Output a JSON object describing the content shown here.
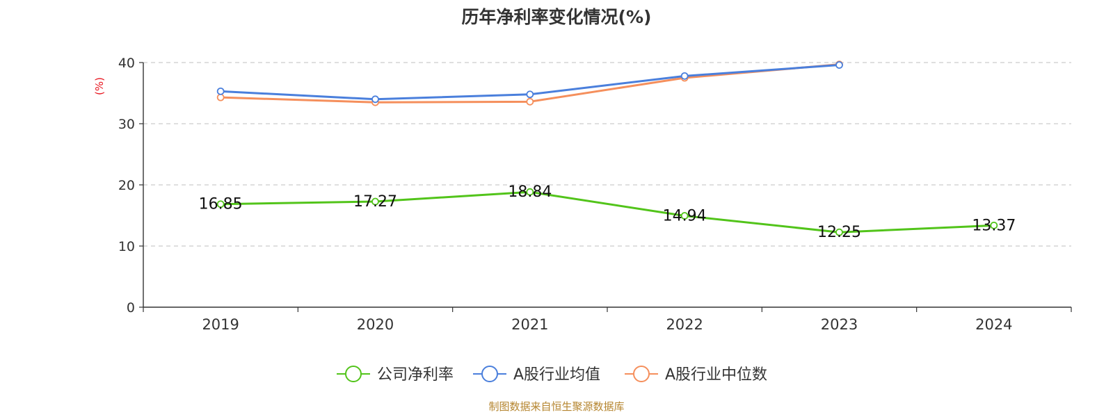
{
  "chart_data": {
    "type": "line",
    "title": "历年净利率变化情况(%)",
    "ylabel": "(%)",
    "ylim": [
      0,
      40
    ],
    "yticks": [
      0,
      10,
      20,
      30,
      40
    ],
    "grid": "horizontal-dashed",
    "legend_position": "bottom",
    "categories": [
      "2019",
      "2020",
      "2021",
      "2022",
      "2023",
      "2024"
    ],
    "series": [
      {
        "name": "公司净利率",
        "color": "#52c41a",
        "values": [
          16.85,
          17.27,
          18.84,
          14.94,
          12.25,
          13.37
        ],
        "labels": [
          "16.85",
          "17.27",
          "18.84",
          "14.94",
          "12.25",
          "13.37"
        ]
      },
      {
        "name": "A股行业均值",
        "color": "#4a7fdc",
        "values": [
          35.3,
          34.0,
          34.8,
          37.8,
          39.6,
          null
        ]
      },
      {
        "name": "A股行业中位数",
        "color": "#f58f5c",
        "values": [
          34.3,
          33.5,
          33.6,
          37.5,
          39.7,
          null
        ]
      }
    ],
    "source": "制图数据来自恒生聚源数据库"
  }
}
